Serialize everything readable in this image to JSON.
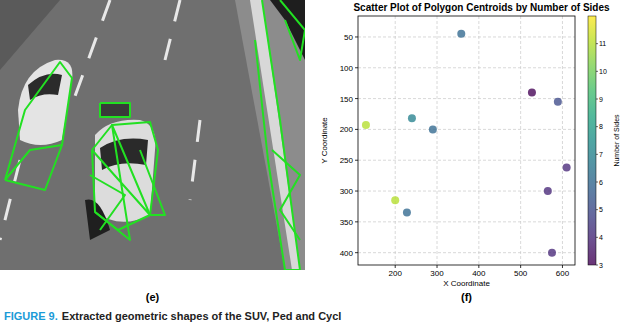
{
  "chart_data": {
    "type": "scatter",
    "title": "Scatter Plot of Polygon Centroids by Number of Sides",
    "x_label": "X Coordinate",
    "y_label": "Y Coordinate",
    "x": [
      358,
      527,
      589,
      130,
      240,
      290,
      610,
      200,
      228,
      565,
      575
    ],
    "y": [
      45,
      140,
      155,
      193,
      182,
      200,
      262,
      315,
      335,
      300,
      400
    ],
    "sides": [
      6,
      3,
      5,
      11,
      7,
      6,
      4,
      11,
      6,
      4,
      4
    ],
    "xlim": [
      111,
      630
    ],
    "xticks": [
      200,
      300,
      400,
      500,
      600
    ],
    "ylim": [
      420,
      16
    ],
    "yticks": [
      50,
      100,
      150,
      200,
      250,
      300,
      350,
      400
    ],
    "grid": true,
    "marker": "circle",
    "colorbar": {
      "label": "Number of Sides",
      "range": [
        3,
        12
      ],
      "ticks": [
        3,
        4,
        5,
        6,
        7,
        8,
        9,
        10,
        11
      ]
    }
  },
  "panels": [
    "(e)",
    "(f)"
  ],
  "caption": {
    "figure": "FIGURE 9.",
    "text": "Extracted geometric shapes of the SUV, Ped and Cycl"
  }
}
